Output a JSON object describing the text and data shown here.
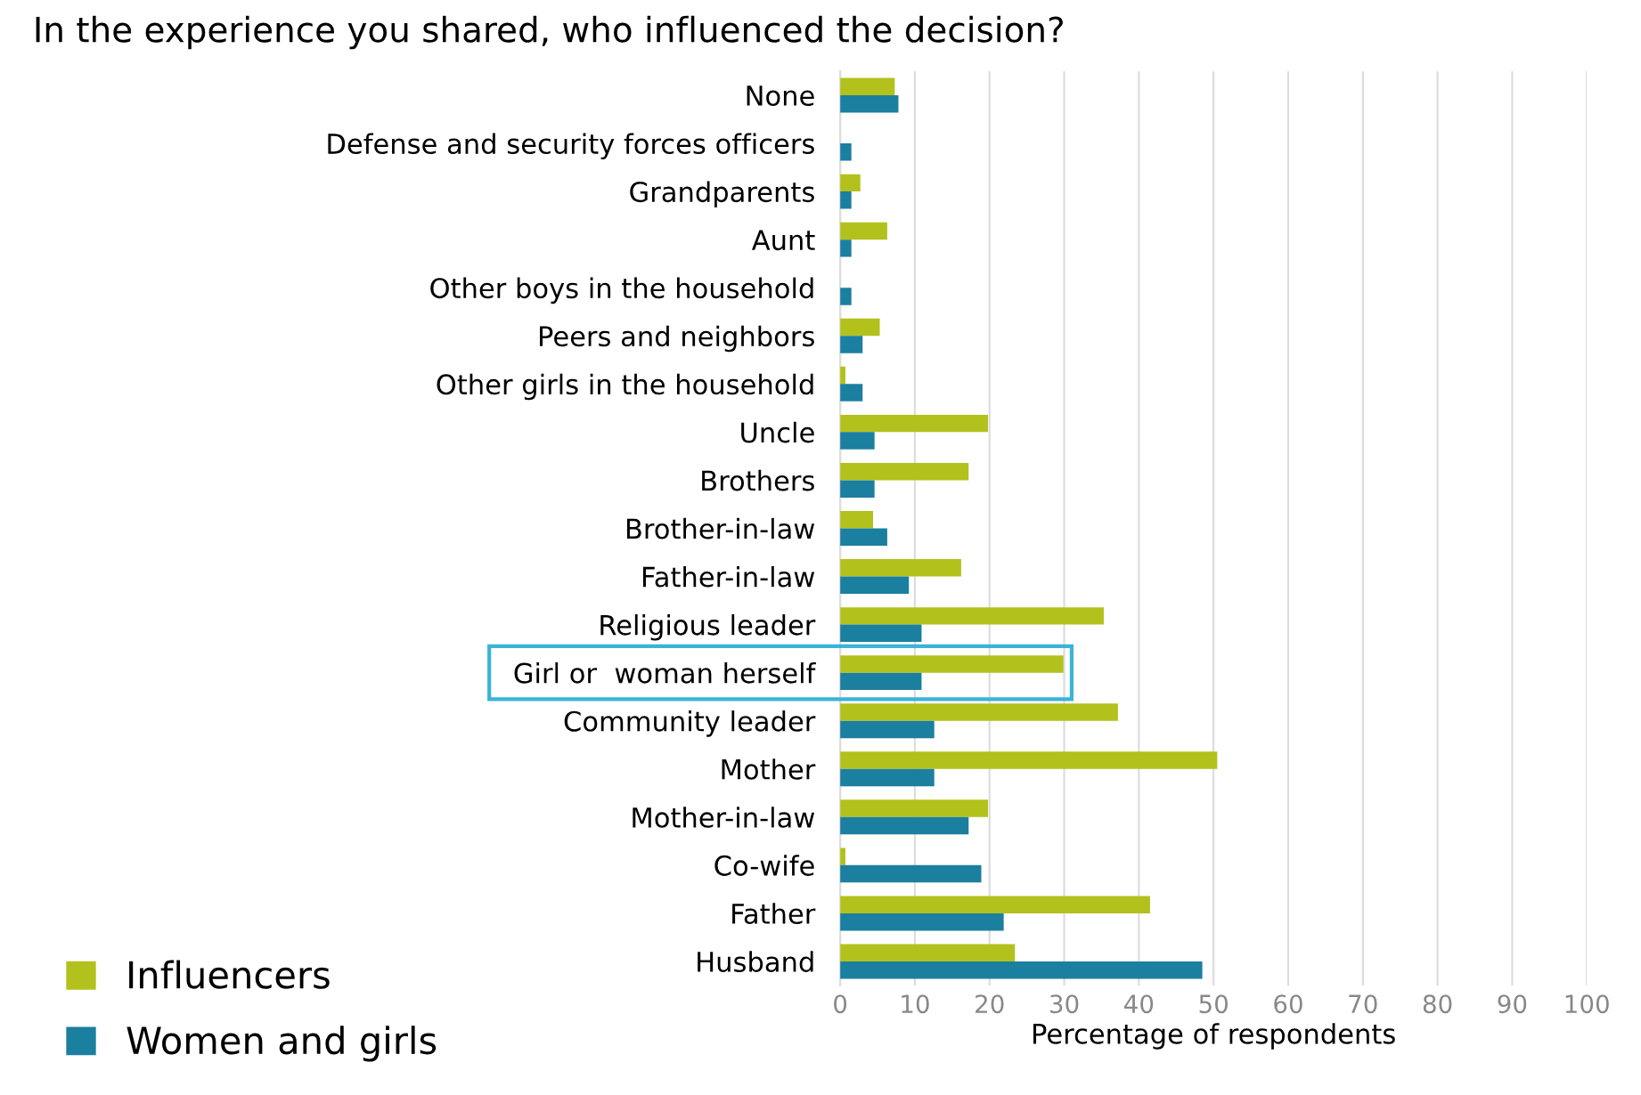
{
  "chart_data": {
    "type": "bar",
    "orientation": "horizontal",
    "title": "In the experience you shared, who influenced the decision?",
    "xlabel": "Percentage of respondents",
    "categories": [
      "None",
      "Defense and security forces officers",
      "Grandparents",
      "Aunt",
      "Other boys in the household",
      "Peers and neighbors",
      "Other girls in the household",
      "Uncle",
      "Brothers",
      "Brother-in-law",
      "Father-in-law",
      "Religious leader",
      "Girl or  woman herself",
      "Community leader",
      "Mother",
      "Mother-in-law",
      "Co-wife",
      "Father",
      "Husband"
    ],
    "series": [
      {
        "name": "Influencers",
        "color": "#b3c11c",
        "values": [
          7.3,
          null,
          2.7,
          6.3,
          null,
          5.3,
          0.7,
          19.8,
          17.2,
          4.4,
          16.2,
          35.3,
          29.9,
          37.2,
          50.5,
          19.8,
          0.7,
          41.5,
          23.4
        ]
      },
      {
        "name": "Women and girls",
        "color": "#1b7f9f",
        "values": [
          7.8,
          1.5,
          1.5,
          1.5,
          1.5,
          3.0,
          3.0,
          4.6,
          4.6,
          6.3,
          9.2,
          10.9,
          10.9,
          12.6,
          12.6,
          17.2,
          18.9,
          21.9,
          48.5
        ]
      }
    ],
    "xlim": [
      0,
      100
    ],
    "xticks": [
      0,
      10,
      20,
      30,
      40,
      50,
      60,
      70,
      80,
      90,
      100
    ],
    "grid": "x",
    "legend": "bottom left"
  }
}
